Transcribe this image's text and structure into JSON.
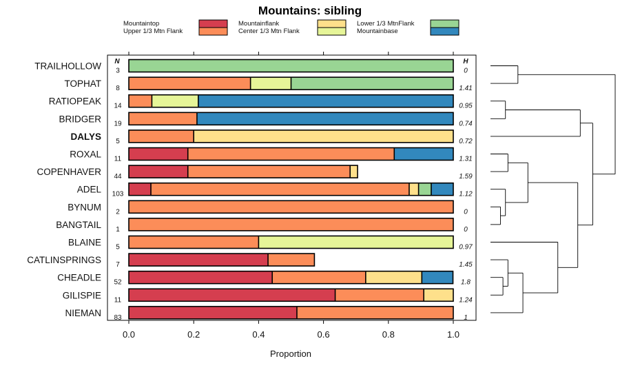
{
  "chart_data": {
    "type": "bar",
    "stacked": true,
    "orientation": "horizontal",
    "title": "Mountains: sibling",
    "xlabel": "Proportion",
    "xlim": [
      0,
      1
    ],
    "xticks": [
      "0.0",
      "0.2",
      "0.4",
      "0.6",
      "0.8",
      "1.0"
    ],
    "n_header": "N",
    "h_header": "H",
    "legend": [
      {
        "name": "Mountaintop",
        "color": "#d53e4f"
      },
      {
        "name": "Upper 1/3 Mtn Flank",
        "color": "#fc8d59"
      },
      {
        "name": "Mountainflank",
        "color": "#fee08b"
      },
      {
        "name": "Center 1/3 Mtn Flank",
        "color": "#e6f598"
      },
      {
        "name": "Lower 1/3 MtnFlank",
        "color": "#99d594"
      },
      {
        "name": "Mountainbase",
        "color": "#3288bd"
      }
    ],
    "rows": [
      {
        "label": "TRAILHOLLOW",
        "bold": false,
        "n": "3",
        "h": "0",
        "values": [
          0,
          0,
          0,
          0,
          1.0,
          0
        ]
      },
      {
        "label": "TOPHAT",
        "bold": false,
        "n": "8",
        "h": "1.41",
        "values": [
          0,
          0.375,
          0,
          0.125,
          0.5,
          0
        ]
      },
      {
        "label": "RATIOPEAK",
        "bold": false,
        "n": "14",
        "h": "0.95",
        "values": [
          0,
          0.071,
          0,
          0.143,
          0,
          0.786
        ]
      },
      {
        "label": "BRIDGER",
        "bold": false,
        "n": "19",
        "h": "0.74",
        "values": [
          0,
          0.21,
          0,
          0,
          0,
          0.79
        ]
      },
      {
        "label": "DALYS",
        "bold": true,
        "n": "5",
        "h": "0.72",
        "values": [
          0,
          0.2,
          0.8,
          0,
          0,
          0
        ]
      },
      {
        "label": "ROXAL",
        "bold": false,
        "n": "11",
        "h": "1.31",
        "values": [
          0.182,
          0.636,
          0,
          0,
          0,
          0.182
        ]
      },
      {
        "label": "COPENHAVER",
        "bold": false,
        "n": "44",
        "h": "1.59",
        "values": [
          0.182,
          0.5,
          0.023,
          0,
          0,
          0
        ]
      },
      {
        "label": "ADEL",
        "bold": false,
        "n": "103",
        "h": "1.12",
        "values": [
          0.068,
          0.796,
          0.029,
          0,
          0.039,
          0.068
        ]
      },
      {
        "label": "BYNUM",
        "bold": false,
        "n": "2",
        "h": "0",
        "values": [
          0,
          1.0,
          0,
          0,
          0,
          0
        ]
      },
      {
        "label": "BANGTAIL",
        "bold": false,
        "n": "1",
        "h": "0",
        "values": [
          0,
          1.0,
          0,
          0,
          0,
          0
        ]
      },
      {
        "label": "BLAINE",
        "bold": false,
        "n": "5",
        "h": "0.97",
        "values": [
          0,
          0.4,
          0,
          0.6,
          0,
          0
        ]
      },
      {
        "label": "CATLINSPRINGS",
        "bold": false,
        "n": "7",
        "h": "1.45",
        "values": [
          0.429,
          0.143,
          0,
          0,
          0,
          0
        ]
      },
      {
        "label": "CHEADLE",
        "bold": false,
        "n": "52",
        "h": "1.8",
        "values": [
          0.442,
          0.288,
          0.173,
          0,
          0,
          0.096
        ]
      },
      {
        "label": "GILISPIE",
        "bold": false,
        "n": "11",
        "h": "1.24",
        "values": [
          0.636,
          0.273,
          0.091,
          0,
          0,
          0
        ]
      },
      {
        "label": "NIEMAN",
        "bold": false,
        "n": "83",
        "h": "1",
        "values": [
          0.518,
          0.482,
          0,
          0,
          0,
          0
        ]
      }
    ],
    "dendrogram": {
      "type": "hierarchical-clustering",
      "merges": [
        {
          "a": 0,
          "b": 1,
          "height": 0.22
        },
        {
          "a": 2,
          "b": 3,
          "height": 0.12
        },
        {
          "a": 5,
          "b": 6,
          "height": 0.14
        },
        {
          "a": 8,
          "b": 9,
          "height": 0.08
        },
        {
          "a": 12,
          "b": 13,
          "height": 0.1
        },
        {
          "a": 7,
          "m": 3,
          "height": 0.12
        },
        {
          "m": 2,
          "m2": 5,
          "height": 0.3
        },
        {
          "m": 4,
          "b": 11,
          "height": 0.14
        },
        {
          "m": 7,
          "b": 14,
          "height": 0.26
        },
        {
          "b": 10,
          "m": 8,
          "height": 0.54
        },
        {
          "m": 6,
          "m2": 9,
          "height": 0.7
        },
        {
          "m": 1,
          "b": 4,
          "height": 0.72
        },
        {
          "m": 11,
          "m2": 10,
          "height": 0.82
        },
        {
          "m": 0,
          "m2": 12,
          "height": 1.0
        }
      ]
    }
  }
}
